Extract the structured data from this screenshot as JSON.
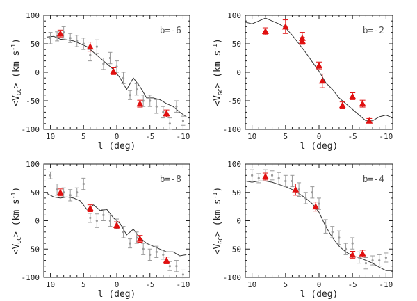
{
  "chart_data": [
    {
      "type": "scatter",
      "panel_label": "b=-6",
      "xlabel": "l (deg)",
      "ylabel": {
        "main": "<V",
        "sub": "GC",
        "units": "> (km s",
        "sup": "-1",
        "close": ")"
      },
      "xlim": [
        11,
        -11
      ],
      "ylim": [
        -100,
        100
      ],
      "xticks": [
        10,
        5,
        0,
        -5,
        -10
      ],
      "yticks": [
        -100,
        -50,
        0,
        50,
        100
      ],
      "series": [
        {
          "role": "model",
          "x": [
            10.5,
            9.5,
            8.5,
            7.5,
            6.5,
            5.5,
            4.5,
            3.5,
            2.5,
            1.5,
            0.5,
            -0.5,
            -1.5,
            -2.5,
            -3.5,
            -4.5,
            -5.5,
            -6.5,
            -7.5,
            -8.5,
            -9.5,
            -10.5
          ],
          "y": [
            62,
            63,
            58,
            57,
            55,
            50,
            45,
            35,
            25,
            15,
            5,
            -10,
            -30,
            -10,
            -25,
            -45,
            -45,
            -48,
            -55,
            -60,
            -70,
            -78
          ]
        },
        {
          "role": "grey-points",
          "x": [
            10,
            9,
            8,
            7,
            6,
            5,
            4,
            3,
            2,
            1,
            0,
            -1,
            -2,
            -3,
            -4,
            -5,
            -6,
            -7,
            -8,
            -9,
            -10
          ],
          "y": [
            60,
            63,
            70,
            60,
            55,
            50,
            30,
            45,
            15,
            25,
            10,
            -10,
            -40,
            -30,
            -50,
            -50,
            -60,
            -70,
            -90,
            -60,
            -85
          ],
          "err": [
            10,
            8,
            10,
            8,
            10,
            10,
            10,
            12,
            10,
            10,
            10,
            10,
            8,
            10,
            10,
            10,
            12,
            10,
            10,
            10,
            8
          ]
        },
        {
          "role": "red-triangles",
          "x": [
            8.5,
            4,
            0.5,
            -3.5,
            -7.5
          ],
          "y": [
            68,
            45,
            2,
            -55,
            -72
          ],
          "err": [
            6,
            8,
            6,
            6,
            6
          ]
        }
      ]
    },
    {
      "type": "scatter",
      "panel_label": "b=-2",
      "xlabel": "l (deg)",
      "ylabel": {
        "main": "<V",
        "sub": "GC",
        "units": "> (km s",
        "sup": "-1",
        "close": ")"
      },
      "xlim": [
        11,
        -11
      ],
      "ylim": [
        -100,
        100
      ],
      "xticks": [
        10,
        5,
        0,
        -5,
        -10
      ],
      "yticks": [
        -100,
        -50,
        0,
        50,
        100
      ],
      "series": [
        {
          "role": "model",
          "x": [
            11,
            10,
            9,
            8,
            7,
            6,
            5,
            4,
            3,
            2,
            1,
            0,
            -1,
            -2,
            -3,
            -4,
            -5,
            -6,
            -7,
            -8,
            -9,
            -10,
            -11
          ],
          "y": [
            88,
            85,
            90,
            95,
            90,
            85,
            78,
            65,
            50,
            35,
            18,
            2,
            -18,
            -30,
            -45,
            -55,
            -65,
            -75,
            -85,
            -85,
            -78,
            -75,
            -80
          ]
        },
        {
          "role": "red-triangles",
          "x": [
            8,
            5,
            2.5,
            2.5,
            0,
            -0.5,
            -3.5,
            -5,
            -6.5,
            -7.5
          ],
          "y": [
            72,
            80,
            60,
            55,
            12,
            -15,
            -58,
            -42,
            -55,
            -85
          ],
          "err": [
            6,
            12,
            10,
            6,
            6,
            12,
            6,
            6,
            6,
            4
          ]
        }
      ]
    },
    {
      "type": "scatter",
      "panel_label": "b=-8",
      "xlabel": "l (deg)",
      "ylabel": {
        "main": "<V",
        "sub": "GC",
        "units": "> (km s",
        "sup": "-1",
        "close": ")"
      },
      "xlim": [
        11,
        -11
      ],
      "ylim": [
        -100,
        100
      ],
      "xticks": [
        10,
        5,
        0,
        -5,
        -10
      ],
      "yticks": [
        -100,
        -50,
        0,
        50,
        100
      ],
      "series": [
        {
          "role": "model",
          "x": [
            10.5,
            9.5,
            8.5,
            7.5,
            6.5,
            5.5,
            4.5,
            3.5,
            2.5,
            1.5,
            0.5,
            -0.5,
            -1.5,
            -2.5,
            -3.5,
            -4.5,
            -5.5,
            -6.5,
            -7.5,
            -8.5,
            -9.5,
            -10.5
          ],
          "y": [
            48,
            42,
            40,
            42,
            40,
            35,
            20,
            28,
            18,
            20,
            5,
            -5,
            -25,
            -15,
            -30,
            -40,
            -45,
            -50,
            -55,
            -55,
            -62,
            -60
          ]
        },
        {
          "role": "grey-points",
          "x": [
            10,
            9,
            8,
            7,
            6,
            5,
            4,
            3,
            2,
            1,
            0,
            -1,
            -2,
            -3,
            -4,
            -5,
            -6,
            -7,
            -8,
            -9,
            -10
          ],
          "y": [
            80,
            55,
            50,
            45,
            50,
            65,
            5,
            0,
            10,
            0,
            -5,
            -20,
            -40,
            -30,
            -50,
            -60,
            -55,
            -60,
            -80,
            -80,
            -95
          ],
          "err": [
            6,
            10,
            8,
            10,
            8,
            10,
            8,
            12,
            10,
            10,
            8,
            10,
            8,
            10,
            10,
            10,
            10,
            8,
            8,
            10,
            8
          ]
        },
        {
          "role": "red-triangles",
          "x": [
            8.5,
            4,
            0,
            -3.5,
            -7.5
          ],
          "y": [
            50,
            22,
            -8,
            -32,
            -70
          ],
          "err": [
            6,
            6,
            6,
            6,
            6
          ]
        }
      ]
    },
    {
      "type": "scatter",
      "panel_label": "b=-4",
      "xlabel": "l (deg)",
      "ylabel": {
        "main": "<V",
        "sub": "GC",
        "units": "> (km s",
        "sup": "-1",
        "close": ")"
      },
      "xlim": [
        11,
        -11
      ],
      "ylim": [
        -100,
        100
      ],
      "xticks": [
        10,
        5,
        0,
        -5,
        -10
      ],
      "yticks": [
        -100,
        -50,
        0,
        50,
        100
      ],
      "series": [
        {
          "role": "model",
          "x": [
            11,
            10,
            9,
            8,
            7,
            6,
            5,
            4,
            3,
            2,
            1,
            0,
            -1,
            -2,
            -3,
            -4,
            -5,
            -6,
            -7,
            -8,
            -9,
            -10,
            -11
          ],
          "y": [
            70,
            68,
            70,
            70,
            68,
            64,
            60,
            55,
            48,
            40,
            30,
            15,
            -10,
            -30,
            -45,
            -55,
            -62,
            -65,
            -70,
            -75,
            -82,
            -88,
            -88
          ]
        },
        {
          "role": "grey-points",
          "x": [
            10,
            9,
            8,
            7,
            6,
            5,
            4,
            3,
            2,
            1,
            0,
            -1,
            -2,
            -3,
            -4,
            -5,
            -6,
            -7,
            -8,
            -9,
            -10
          ],
          "y": [
            80,
            75,
            80,
            80,
            75,
            70,
            70,
            55,
            40,
            50,
            30,
            -10,
            -20,
            -30,
            -50,
            -40,
            -65,
            -75,
            -70,
            -70,
            -65
          ],
          "err": [
            10,
            8,
            10,
            8,
            10,
            10,
            10,
            12,
            10,
            10,
            10,
            12,
            10,
            12,
            10,
            10,
            10,
            10,
            8,
            10,
            8
          ]
        },
        {
          "role": "red-triangles",
          "x": [
            8,
            3.5,
            0.5,
            -5,
            -6.5
          ],
          "y": [
            78,
            55,
            25,
            -60,
            -58
          ],
          "err": [
            6,
            10,
            8,
            6,
            6
          ]
        }
      ]
    }
  ],
  "colors": {
    "red": "#e01010",
    "grey": "#9a9a9a",
    "line": "#333333",
    "axis": "#222222"
  }
}
